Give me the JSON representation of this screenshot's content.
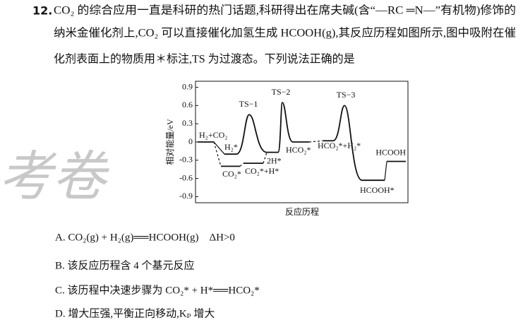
{
  "question": {
    "number": "12.",
    "lines": [
      "CO₂ 的综合应用一直是科研的热门话题,科研得出在席夫碱(含“—RC ═N—”有机物)修饰的",
      "纳米金催化剂上,CO₂ 可以直接催化加氢生成 HCOOH(g),其反应历程如图所示,图中吸附在催",
      "化剂表面上的物质用＊标注,TS 为过渡态。下列说法正确的是"
    ]
  },
  "figure": {
    "y_label": "相对能量/eV",
    "x_label": "反应历程",
    "ylim": [
      -1.0,
      1.0
    ],
    "yticks": [
      0.9,
      0.6,
      0.3,
      0,
      -0.3,
      -0.6,
      -0.9
    ],
    "states": [
      {
        "label": "H₂+CO₂",
        "value": 0
      },
      {
        "label": "H₂*",
        "value": -0.2
      },
      {
        "label": "TS−1",
        "value": 0.45
      },
      {
        "label": "2H*",
        "value": -0.17
      },
      {
        "label": "TS−2",
        "value": 0.65
      },
      {
        "label": "HCO₂*",
        "value": 0
      },
      {
        "label": "HCO₂*+H₂*",
        "value": 0.02
      },
      {
        "label": "TS−3",
        "value": 0.6
      },
      {
        "label": "HCOOH*",
        "value": -0.63
      },
      {
        "label": "HCOOH",
        "value": -0.32
      },
      {
        "label": "CO₂*",
        "value": -0.4
      },
      {
        "label": "CO₂*+H*",
        "value": -0.35
      }
    ]
  },
  "options": [
    "A. CO₂(g) + H₂(g)══HCOOH(g)　ΔH>0",
    "B. 该反应历程含 4 个基元反应",
    "C. 该历程中决速步骤为 CO₂* + H*══HCO₂*",
    "D. 增大压强,平衡正向移动,Kₚ 增大"
  ],
  "watermark": "考卷"
}
